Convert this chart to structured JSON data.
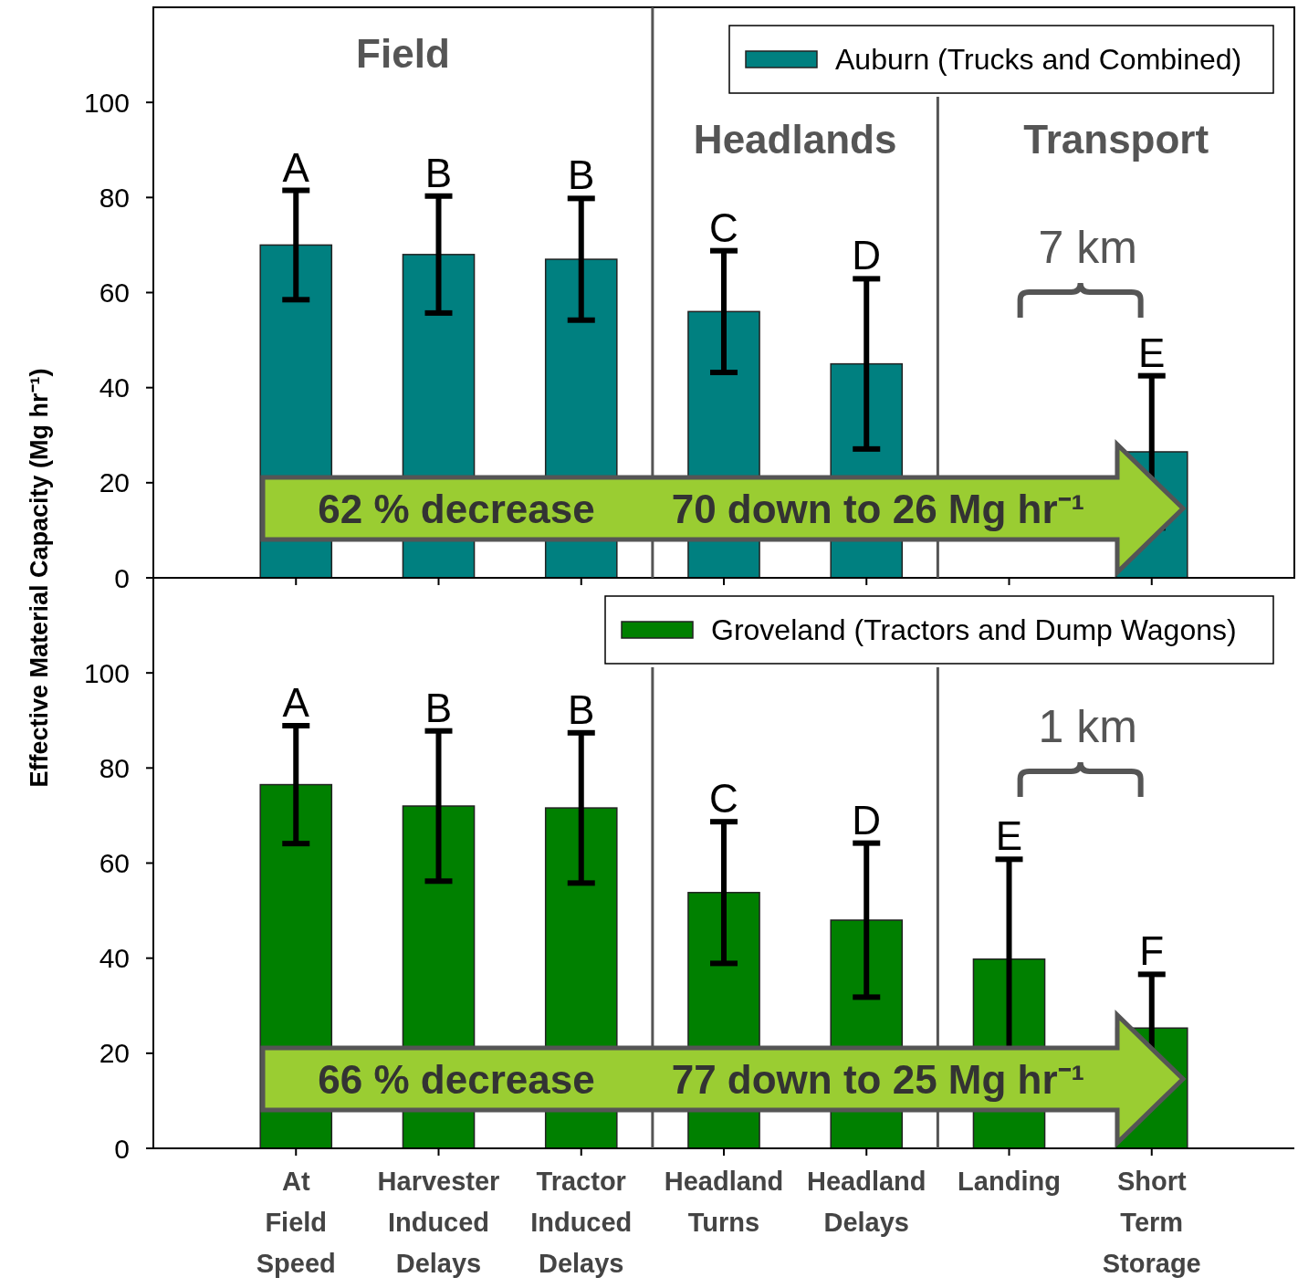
{
  "chart_data": [
    {
      "type": "bar",
      "categories": [
        "At Field Speed",
        "Harvester Induced Delays",
        "Tractor Induced Delays",
        "Headland Turns",
        "Headland Delays",
        "Landing",
        "Short Term Storage"
      ],
      "series": [
        {
          "name": "Auburn (Trucks and Combined)",
          "color": "#008080",
          "values": [
            70,
            68,
            67,
            56,
            45,
            null,
            26.5
          ],
          "errors": [
            11.5,
            12.3,
            12.8,
            12.8,
            17.9,
            null,
            16
          ]
        }
      ],
      "ylabel": "Effective Material Capacity (Mg hr⁻¹)",
      "ylim": [
        0,
        120
      ],
      "yticks": [
        0,
        20,
        40,
        60,
        80,
        100
      ],
      "tick_labels": "y",
      "legend": "top right",
      "grid": false,
      "annotations": [
        "7 km",
        "62 % decrease",
        "70 down to 26 Mg hr⁻¹",
        "Field",
        "Headlands",
        "Transport",
        {
          "text": "A",
          "x": "At Field Speed",
          "y": 81.5
        },
        {
          "text": "B",
          "x": "Harvester Induced Delays",
          "y": 80.3
        },
        {
          "text": "B",
          "x": "Tractor Induced Delays",
          "y": 79.8
        },
        {
          "text": "C",
          "x": "Headland Turns",
          "y": 68.8
        },
        {
          "text": "D",
          "x": "Headland Delays",
          "y": 62.9
        },
        {
          "text": "E",
          "x": "Short Term Storage",
          "y": 42.5
        }
      ]
    },
    {
      "type": "bar",
      "categories": [
        "At Field Speed",
        "Harvester Induced Delays",
        "Tractor Induced Delays",
        "Headland Turns",
        "Headland Delays",
        "Landing",
        "Short Term Storage"
      ],
      "series": [
        {
          "name": "Groveland (Tractors and Dump Wagons)",
          "color": "#008000",
          "values": [
            76.5,
            72,
            71.6,
            53.8,
            48,
            39.8,
            25.3
          ],
          "errors": [
            12.4,
            15.8,
            15.8,
            14.9,
            16.2,
            21,
            11.3
          ]
        }
      ],
      "ylim": [
        0,
        120
      ],
      "yticks": [
        0,
        20,
        40,
        60,
        80,
        100
      ],
      "legend": "top right",
      "grid": false,
      "annotations": [
        "1 km",
        "66 % decrease",
        "77 down to 25 Mg hr⁻¹",
        {
          "text": "A",
          "x": "At Field Speed",
          "y": 88.9
        },
        {
          "text": "B",
          "x": "Harvester Induced Delays",
          "y": 87.8
        },
        {
          "text": "B",
          "x": "Tractor Induced Delays",
          "y": 87.4
        },
        {
          "text": "C",
          "x": "Headland Turns",
          "y": 68.7
        },
        {
          "text": "D",
          "x": "Headland Delays",
          "y": 64.2
        },
        {
          "text": "E",
          "x": "Landing",
          "y": 60.8
        },
        {
          "text": "F",
          "x": "Short Term Storage",
          "y": 36.6
        }
      ]
    }
  ]
}
